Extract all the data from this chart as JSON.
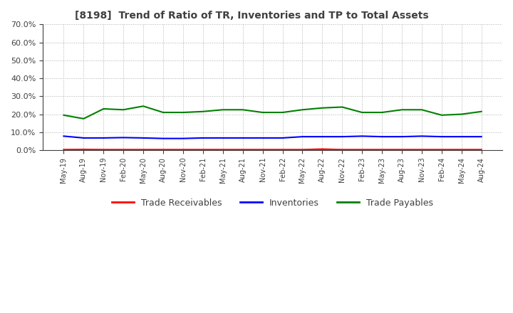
{
  "title": "[8198]  Trend of Ratio of TR, Inventories and TP to Total Assets",
  "x_labels": [
    "May-19",
    "Aug-19",
    "Nov-19",
    "Feb-20",
    "May-20",
    "Aug-20",
    "Nov-20",
    "Feb-21",
    "May-21",
    "Aug-21",
    "Nov-21",
    "Feb-22",
    "May-22",
    "Aug-22",
    "Nov-22",
    "Feb-23",
    "May-23",
    "Aug-23",
    "Nov-23",
    "Feb-24",
    "May-24",
    "Aug-24"
  ],
  "trade_receivables": [
    0.3,
    0.4,
    0.3,
    0.3,
    0.3,
    0.3,
    0.3,
    0.3,
    0.3,
    0.3,
    0.3,
    0.3,
    0.3,
    0.6,
    0.3,
    0.3,
    0.3,
    0.3,
    0.3,
    0.3,
    0.3,
    0.3
  ],
  "inventories": [
    7.8,
    6.8,
    6.8,
    7.0,
    6.8,
    6.5,
    6.5,
    6.8,
    6.8,
    6.8,
    6.8,
    6.8,
    7.5,
    7.5,
    7.5,
    7.8,
    7.5,
    7.5,
    7.8,
    7.5,
    7.5,
    7.5
  ],
  "trade_payables": [
    19.5,
    17.5,
    23.0,
    22.5,
    24.5,
    21.0,
    21.0,
    21.5,
    22.5,
    22.5,
    21.0,
    21.0,
    22.5,
    23.5,
    24.0,
    21.0,
    21.0,
    22.5,
    22.5,
    19.5,
    20.0,
    21.5
  ],
  "trade_receivables_color": "#ff0000",
  "inventories_color": "#0000ff",
  "trade_payables_color": "#008000",
  "ylim": [
    0,
    70
  ],
  "yticks": [
    0,
    10,
    20,
    30,
    40,
    50,
    60,
    70
  ],
  "background_color": "#ffffff",
  "grid_color": "#b0b0b0",
  "title_color": "#404040",
  "legend_labels": [
    "Trade Receivables",
    "Inventories",
    "Trade Payables"
  ]
}
